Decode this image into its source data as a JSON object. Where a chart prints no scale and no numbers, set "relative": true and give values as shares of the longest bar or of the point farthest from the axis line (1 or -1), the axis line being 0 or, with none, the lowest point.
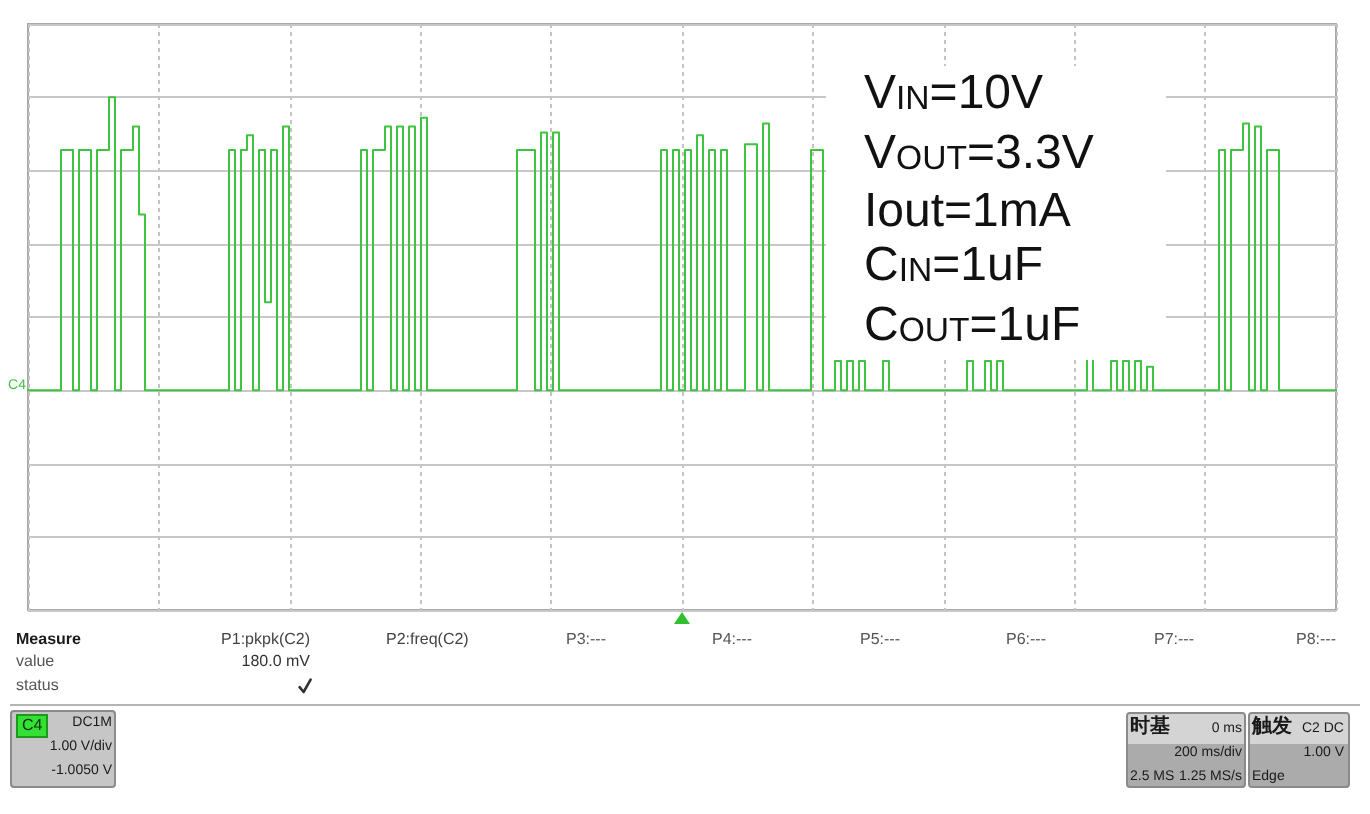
{
  "chart_data": {
    "type": "step",
    "relative": true,
    "grid": true,
    "tick_labels": false,
    "categories": [
      null,
      null,
      null,
      null,
      null,
      null,
      null,
      null,
      null,
      null,
      null,
      null,
      null,
      null,
      null,
      null,
      null,
      null,
      null,
      null,
      null,
      null,
      null,
      null,
      null,
      null,
      null,
      null,
      null,
      null,
      null,
      null,
      null,
      null,
      null,
      null,
      null,
      null,
      null,
      null,
      null,
      null,
      null,
      null,
      null,
      null,
      null,
      null,
      null,
      null,
      null,
      null,
      null,
      null,
      null,
      null,
      null,
      null,
      null,
      null,
      null,
      null,
      null,
      null,
      null,
      null,
      null,
      null,
      null,
      null,
      null,
      null,
      null,
      null,
      null,
      null,
      null,
      null,
      null,
      null,
      null,
      null,
      null,
      null,
      null,
      null,
      null,
      null,
      null,
      null,
      null,
      null,
      null,
      null,
      null,
      null,
      null,
      null,
      null,
      null,
      null,
      null,
      null,
      null,
      null,
      null,
      null,
      null,
      null,
      null,
      null,
      null,
      null,
      null,
      null,
      null,
      null,
      null,
      null,
      null,
      null,
      null,
      null,
      null,
      null,
      null,
      null,
      null,
      null,
      null,
      null,
      null,
      null,
      null,
      null,
      null,
      null,
      null,
      null,
      null,
      null,
      null,
      null,
      null,
      null,
      null,
      null,
      null,
      null,
      null,
      null,
      null,
      null,
      null,
      null,
      null,
      null,
      null,
      null,
      null,
      null,
      null,
      null,
      null,
      null,
      null,
      null,
      null,
      null,
      null,
      null,
      null,
      null,
      null,
      null,
      null,
      null,
      null,
      null,
      null,
      null,
      null,
      null,
      null,
      null,
      null,
      null,
      null,
      null,
      null,
      null,
      null,
      null,
      null,
      null,
      null,
      null,
      null,
      null,
      null,
      null,
      null,
      null,
      null,
      null,
      null,
      null,
      null,
      null,
      null,
      null,
      null,
      null,
      null,
      null,
      null,
      null,
      null,
      null
    ],
    "series": [
      {
        "name": "C4",
        "color": "#3ec43e",
        "values": [
          0,
          0,
          0,
          0,
          0,
          0,
          0.82,
          0.82,
          0,
          0.82,
          0.82,
          0,
          0.82,
          0.82,
          1,
          0,
          0.82,
          0.82,
          0.9,
          0.6,
          0,
          0,
          0,
          0,
          0,
          0,
          0,
          0,
          0,
          0,
          0,
          0,
          0,
          0,
          0.82,
          0,
          0.82,
          0.87,
          0,
          0.82,
          0.3,
          0.82,
          0,
          0.9,
          0,
          0,
          0,
          0,
          0,
          0,
          0,
          0,
          0,
          0,
          0,
          0,
          0.82,
          0,
          0.82,
          0.82,
          0.9,
          0,
          0.9,
          0,
          0.9,
          0,
          0.93,
          0,
          0,
          0,
          0,
          0,
          0,
          0,
          0,
          0,
          0,
          0,
          0,
          0,
          0,
          0,
          0.82,
          0.82,
          0.82,
          0,
          0.88,
          0,
          0.88,
          0,
          0,
          0,
          0,
          0,
          0,
          0,
          0,
          0,
          0,
          0,
          0,
          0,
          0,
          0,
          0,
          0,
          0.82,
          0,
          0.82,
          0,
          0.82,
          0,
          0.87,
          0,
          0.82,
          0,
          0.82,
          0,
          0,
          0,
          0.84,
          0.84,
          0,
          0.91,
          0,
          0,
          0,
          0,
          0,
          0,
          0,
          0.82,
          0.82,
          0,
          0,
          0.1,
          0,
          0.1,
          0,
          0.1,
          0,
          0,
          0,
          0.1,
          0,
          0,
          0,
          0,
          0,
          0,
          0,
          0,
          0,
          0,
          0,
          0,
          0,
          0.1,
          0,
          0,
          0.1,
          0,
          0.1,
          0,
          0,
          0,
          0,
          0,
          0,
          0,
          0,
          0,
          0,
          0,
          0,
          0,
          0,
          0.11,
          0,
          0,
          0,
          0.1,
          0,
          0.1,
          0,
          0.1,
          0,
          0.08,
          0,
          0,
          0,
          0,
          0,
          0,
          0,
          0,
          0,
          0,
          0,
          0.82,
          0,
          0.82,
          0.82,
          0.91,
          0,
          0.9,
          0,
          0.82,
          0.82,
          0,
          0,
          0,
          0,
          0,
          0,
          0,
          0,
          0,
          0
        ]
      }
    ],
    "annotations": [
      "V$_{IN}$=10V",
      "V$_{OUT}$=3.3V",
      "Iout=1mA",
      "C$_{IN}$=1uF",
      "C$_{OUT}$=1uF",
      "Measure",
      "value",
      "status",
      "P1:pkpk(C2)",
      "180.0 mV",
      "P2:freq(C2)",
      "P3:---",
      "P4:---",
      "P5:---",
      "P6:---",
      "P7:---",
      "P8:---",
      "C4",
      "DC1M",
      "1.00 V/div",
      "-1.0050 V",
      "时基",
      "0 ms",
      "200 ms/div",
      "2.5 MS",
      "1.25 MS/s",
      "触发",
      "C2 DC",
      "1.00 V",
      "Edge"
    ]
  }
}
